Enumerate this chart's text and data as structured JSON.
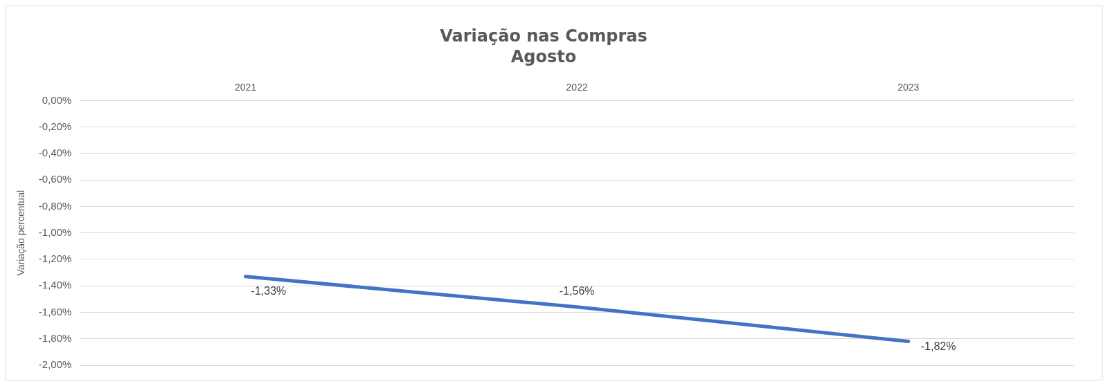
{
  "chart_data": {
    "type": "line",
    "title": "Variação nas Compras",
    "subtitle": "Agosto",
    "ylabel": "Variação percentual",
    "categories": [
      "2021",
      "2022",
      "2023"
    ],
    "series": [
      {
        "color": "#4472c4",
        "values": [
          -1.33,
          -1.56,
          -1.82
        ],
        "value_labels": [
          "-1,33%",
          "-1,56%",
          "-1,82%"
        ]
      }
    ],
    "ylim": [
      -2,
      0
    ],
    "yticks": [
      {
        "value": 0,
        "label": "0,00%"
      },
      {
        "value": -0.2,
        "label": "-0,20%"
      },
      {
        "value": -0.4,
        "label": "-0,40%"
      },
      {
        "value": -0.6,
        "label": "-0,60%"
      },
      {
        "value": -0.8,
        "label": "-0,80%"
      },
      {
        "value": -1,
        "label": "-1,00%"
      },
      {
        "value": -1.2,
        "label": "-1,20%"
      },
      {
        "value": -1.4,
        "label": "-1,40%"
      },
      {
        "value": -1.6,
        "label": "-1,60%"
      },
      {
        "value": -1.8,
        "label": "-1,80%"
      },
      {
        "value": -2,
        "label": "-2,00%"
      }
    ],
    "grid": "y",
    "marker": "none",
    "line_style": "solid",
    "legend": false
  }
}
